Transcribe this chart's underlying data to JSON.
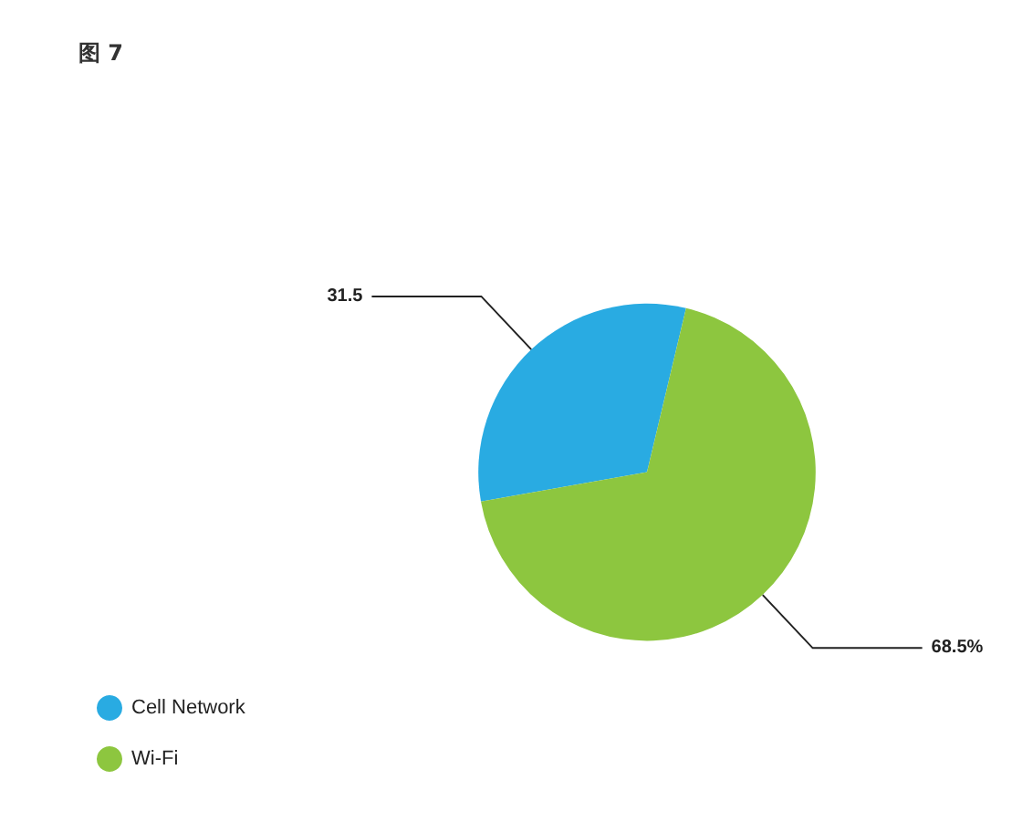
{
  "chart_data": {
    "type": "pie",
    "title": "图 7",
    "categories": [
      "Cell Network",
      "Wi-Fi"
    ],
    "values": [
      31.5,
      68.5
    ],
    "colors": [
      "#29abe2",
      "#8dc63f"
    ],
    "value_labels": [
      "31.5",
      "68.5%"
    ],
    "legend": "bottom left"
  }
}
